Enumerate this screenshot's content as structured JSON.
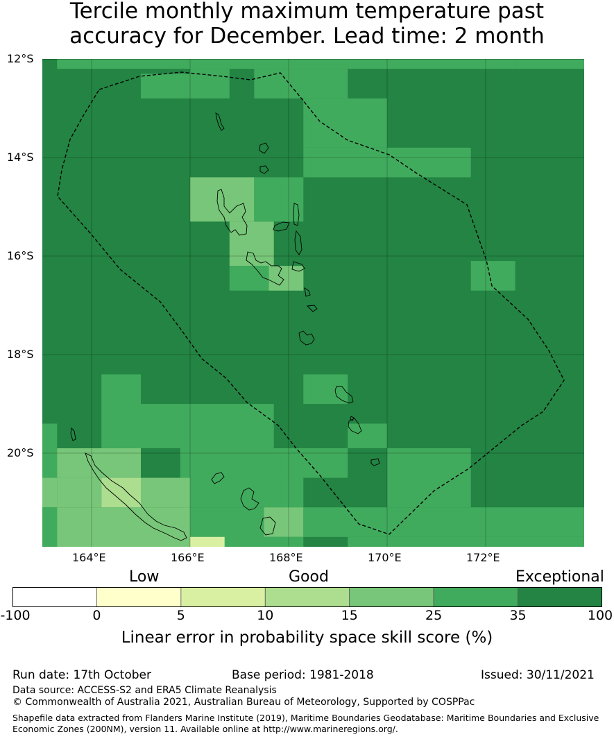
{
  "title": {
    "line1": "Tercile monthly maximum temperature past",
    "line2": "accuracy for December. Lead time: 2 month"
  },
  "map": {
    "lat_labels": [
      "12°S",
      "14°S",
      "16°S",
      "18°S",
      "20°S"
    ],
    "lon_labels": [
      "164°E",
      "166°E",
      "168°E",
      "170°E",
      "172°E"
    ],
    "lon_range": [
      163.0,
      174.0
    ],
    "lat_range": [
      -21.9,
      -12.0
    ],
    "grid_resolution_deg": 0.833,
    "category_colors": [
      "#ffffff",
      "#ffffcc",
      "#d9f0a3",
      "#addd8e",
      "#78c679",
      "#41ab5d",
      "#238443"
    ],
    "cell_category_grid": [
      "66555555666666666666666666555555555555555",
      "66555555555555555555555555555555555555555",
      "66666666666555566666666666666666666666666",
      "66666666666655566666666666666666666666666",
      "66666666666665566666666666666666666666666",
      "66666666666665566666666666666666666666666",
      "66666666666666555555556666666666666666666",
      "66666666666666655555555666666666666666666",
      "66666666666666655555555666666666666666666",
      "66666666666666666666666666666666666666666",
      "66666666666666666666666666666666666666666",
      "66666666666666666666666666666666666666666",
      "66666666666666666666666666666666666666666",
      "66666666666666666666666666666666666666666",
      "66666666666666666666666666666666666666666",
      "66666666666666666666666666666666666666666",
      "66666666666666666666666666666666666666666",
      "66666666666666666666666666666666666666666",
      "66666666666666666666666666666666666666666",
      "66666666666666666666666666666666666666666",
      "66666666666666666666666666666666666666666",
      "66666666666666666666666666666666666666666",
      "66666666666666666666666666666666666666666",
      "66666666666666666666666666666666666666666",
      "66666666666666666666666666666666666666666",
      "66666666666666666666666666666666666666666",
      "66666666666666666666666666666666666666666",
      "66666666666666666666666666666666666666666",
      "66666666666666666666666666666666666666666",
      "66666666666666666666666666666666666666666"
    ],
    "overrides": [
      {
        "lon": [
          166.0,
          167.3
        ],
        "lat": [
          -15.3,
          -14.4
        ],
        "cat": 4
      },
      {
        "lon": [
          166.8,
          167.7
        ],
        "lat": [
          -16.2,
          -15.3
        ],
        "cat": 4
      },
      {
        "lon": [
          166.8,
          168.3
        ],
        "lat": [
          -16.7,
          -16.2
        ],
        "cat": 5
      },
      {
        "lon": [
          167.6,
          168.3
        ],
        "lat": [
          -16.7,
          -16.2
        ],
        "cat": 4
      },
      {
        "lon": [
          167.3,
          168.3
        ],
        "lat": [
          -15.3,
          -14.4
        ],
        "cat": 5
      },
      {
        "lon": [
          165.0,
          166.0
        ],
        "lat": [
          -12.3,
          -12.8
        ],
        "cat": 5
      },
      {
        "lon": [
          166.0,
          166.8
        ],
        "lat": [
          -12.2,
          -12.8
        ],
        "cat": 5
      },
      {
        "lon": [
          167.3,
          169.2
        ],
        "lat": [
          -12.2,
          -12.8
        ],
        "cat": 5
      },
      {
        "lon": [
          163.3,
          172.6
        ],
        "lat": [
          -12.0,
          -12.2
        ],
        "cat": 5
      },
      {
        "lon": [
          172.6,
          174.0
        ],
        "lat": [
          -12.0,
          -12.2
        ],
        "cat": 5
      },
      {
        "lon": [
          168.3,
          170.0
        ],
        "lat": [
          -12.8,
          -13.8
        ],
        "cat": 5
      },
      {
        "lon": [
          168.3,
          171.7
        ],
        "lat": [
          -13.8,
          -14.4
        ],
        "cat": 5
      },
      {
        "lon": [
          171.7,
          172.6
        ],
        "lat": [
          -16.1,
          -16.7
        ],
        "cat": 5
      },
      {
        "lon": [
          164.2,
          165.0
        ],
        "lat": [
          -18.4,
          -19.0
        ],
        "cat": 5
      },
      {
        "lon": [
          164.2,
          167.7
        ],
        "lat": [
          -19.0,
          -19.9
        ],
        "cat": 5
      },
      {
        "lon": [
          168.3,
          169.2
        ],
        "lat": [
          -18.4,
          -19.0
        ],
        "cat": 5
      },
      {
        "lon": [
          169.2,
          170.0
        ],
        "lat": [
          -19.4,
          -19.9
        ],
        "cat": 5
      },
      {
        "lon": [
          163.0,
          163.3
        ],
        "lat": [
          -19.4,
          -20.5
        ],
        "cat": 5
      },
      {
        "lon": [
          163.3,
          165.0
        ],
        "lat": [
          -19.9,
          -20.5
        ],
        "cat": 4
      },
      {
        "lon": [
          165.0,
          165.8
        ],
        "lat": [
          -19.9,
          -20.5
        ],
        "cat": 6
      },
      {
        "lon": [
          165.8,
          169.2
        ],
        "lat": [
          -19.9,
          -20.5
        ],
        "cat": 5
      },
      {
        "lon": [
          170.0,
          171.7
        ],
        "lat": [
          -19.9,
          -20.5
        ],
        "cat": 5
      },
      {
        "lon": [
          163.0,
          163.3
        ],
        "lat": [
          -20.5,
          -21.1
        ],
        "cat": 4
      },
      {
        "lon": [
          163.3,
          164.2
        ],
        "lat": [
          -20.5,
          -21.1
        ],
        "cat": 4
      },
      {
        "lon": [
          164.2,
          165.0
        ],
        "lat": [
          -20.5,
          -21.1
        ],
        "cat": 3
      },
      {
        "lon": [
          165.0,
          166.0
        ],
        "lat": [
          -20.5,
          -21.1
        ],
        "cat": 4
      },
      {
        "lon": [
          166.0,
          168.3
        ],
        "lat": [
          -20.5,
          -21.1
        ],
        "cat": 5
      },
      {
        "lon": [
          170.0,
          171.7
        ],
        "lat": [
          -20.5,
          -21.1
        ],
        "cat": 5
      },
      {
        "lon": [
          163.0,
          163.3
        ],
        "lat": [
          -21.1,
          -21.9
        ],
        "cat": 5
      },
      {
        "lon": [
          163.3,
          166.0
        ],
        "lat": [
          -21.1,
          -21.9
        ],
        "cat": 4
      },
      {
        "lon": [
          166.0,
          167.5
        ],
        "lat": [
          -21.1,
          -21.9
        ],
        "cat": 5
      },
      {
        "lon": [
          167.5,
          168.3
        ],
        "lat": [
          -21.1,
          -21.7
        ],
        "cat": 4
      },
      {
        "lon": [
          167.5,
          168.3
        ],
        "lat": [
          -21.7,
          -21.9
        ],
        "cat": 5
      },
      {
        "lon": [
          168.3,
          174.0
        ],
        "lat": [
          -21.1,
          -21.7
        ],
        "cat": 5
      },
      {
        "lon": [
          169.2,
          174.0
        ],
        "lat": [
          -21.7,
          -21.9
        ],
        "cat": 5
      },
      {
        "lon": [
          166.0,
          166.7
        ],
        "lat": [
          -21.7,
          -21.9
        ],
        "cat": 2
      }
    ]
  },
  "legend": {
    "category_labels": [
      "Low",
      "Good",
      "Exceptional"
    ],
    "bins": [
      {
        "from": "-100",
        "to": "0",
        "color": "#ffffff"
      },
      {
        "from": "0",
        "to": "5",
        "color": "#ffffcc"
      },
      {
        "from": "5",
        "to": "10",
        "color": "#d9f0a3"
      },
      {
        "from": "10",
        "to": "15",
        "color": "#addd8e"
      },
      {
        "from": "15",
        "to": "25",
        "color": "#78c679"
      },
      {
        "from": "25",
        "to": "35",
        "color": "#41ab5d"
      },
      {
        "from": "35",
        "to": "100",
        "color": "#238443"
      }
    ],
    "tick_labels": [
      "-100",
      "0",
      "5",
      "10",
      "15",
      "25",
      "35",
      "100"
    ],
    "axis_label": "Linear error in probability space skill score (%)"
  },
  "footer": {
    "run_date": "Run date: 17th October",
    "base_period": "Base period: 1981-2018",
    "issued": "Issued: 30/11/2021",
    "data_source": "Data source: ACCESS-S2 and ERA5 Climate Reanalysis",
    "copyright": "© Commonwealth of Australia 2021, Australian Bureau of Meteorology, Supported by COSPPac",
    "shapefile": "Shapefile data extracted from Flanders Marine Institute (2019), Maritime Boundaries Geodatabase: Maritime Boundaries and Exclusive Economic Zones (200NM), version 11. Available online at http://www.marineregions.org/."
  }
}
